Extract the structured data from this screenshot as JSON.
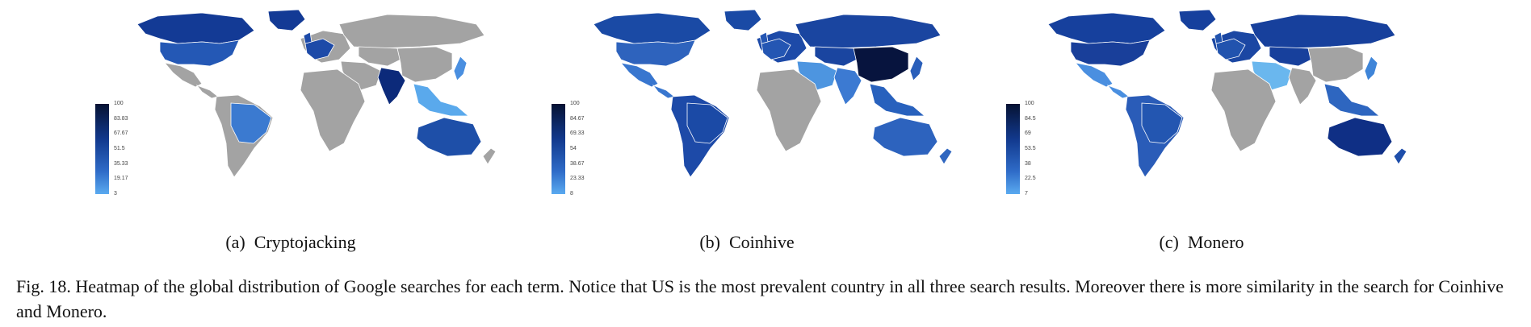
{
  "panels": [
    {
      "id": "a",
      "label": "(a)",
      "title": "Cryptojacking",
      "legend": {
        "max": 100,
        "min": 3,
        "ticks": [
          "100",
          "83.83",
          "67.67",
          "51.5",
          "35.33",
          "19.17",
          "3"
        ]
      },
      "colors": {
        "north_america": "#133a95",
        "usa": "#2458b5",
        "mexico": "#a3a3a3",
        "south_america": "#a3a3a3",
        "brazil": "#3b7ad0",
        "europe": "#a3a3a3",
        "western_europe": "#1d4aa8",
        "russia": "#a3a3a3",
        "africa": "#a3a3a3",
        "middle_east": "#a3a3a3",
        "india": "#0c2a7a",
        "china": "#a3a3a3",
        "se_asia": "#5aa9ec",
        "japan": "#4a8fe0",
        "australia": "#1e4fa8",
        "new_zealand": "#a3a3a3"
      }
    },
    {
      "id": "b",
      "label": "(b)",
      "title": "Coinhive",
      "legend": {
        "max": 100,
        "min": 8,
        "ticks": [
          "100",
          "84.67",
          "69.33",
          "54",
          "38.67",
          "23.33",
          "8"
        ]
      },
      "colors": {
        "north_america": "#1a4aa5",
        "usa": "#2e63bd",
        "mexico": "#3876cf",
        "south_america": "#1d4aa8",
        "brazil": "#1b4aa6",
        "europe": "#1d4aa8",
        "western_europe": "#2456b3",
        "russia": "#1a45a0",
        "africa": "#a3a3a3",
        "middle_east": "#4d95e0",
        "india": "#3c7ad2",
        "china": "#07143e",
        "se_asia": "#2861bd",
        "japan": "#2a5fba",
        "australia": "#2d63be",
        "new_zealand": "#2f66c0"
      }
    },
    {
      "id": "c",
      "label": "(c)",
      "title": "Monero",
      "legend": {
        "max": 100,
        "min": 7,
        "ticks": [
          "100",
          "84.5",
          "69",
          "53.5",
          "38",
          "22.5",
          "7"
        ]
      },
      "colors": {
        "north_america": "#16409d",
        "usa": "#193f9a",
        "mexico": "#4a8fe0",
        "south_america": "#2a5cb8",
        "brazil": "#2356b1",
        "europe": "#1b47a3",
        "western_europe": "#2153ae",
        "russia": "#17409c",
        "africa": "#a3a3a3",
        "middle_east": "#6ab7ee",
        "india": "#a3a3a3",
        "china": "#a3a3a3",
        "se_asia": "#2e66c0",
        "japan": "#3f85d8",
        "australia": "#0f2f85",
        "new_zealand": "#1e4eaa"
      }
    }
  ],
  "caption": "Fig. 18.  Heatmap of the global distribution of Google searches for each term. Notice that US is the most prevalent country in all three search results. Moreover there is more similarity in the search for Coinhive and Monero."
}
